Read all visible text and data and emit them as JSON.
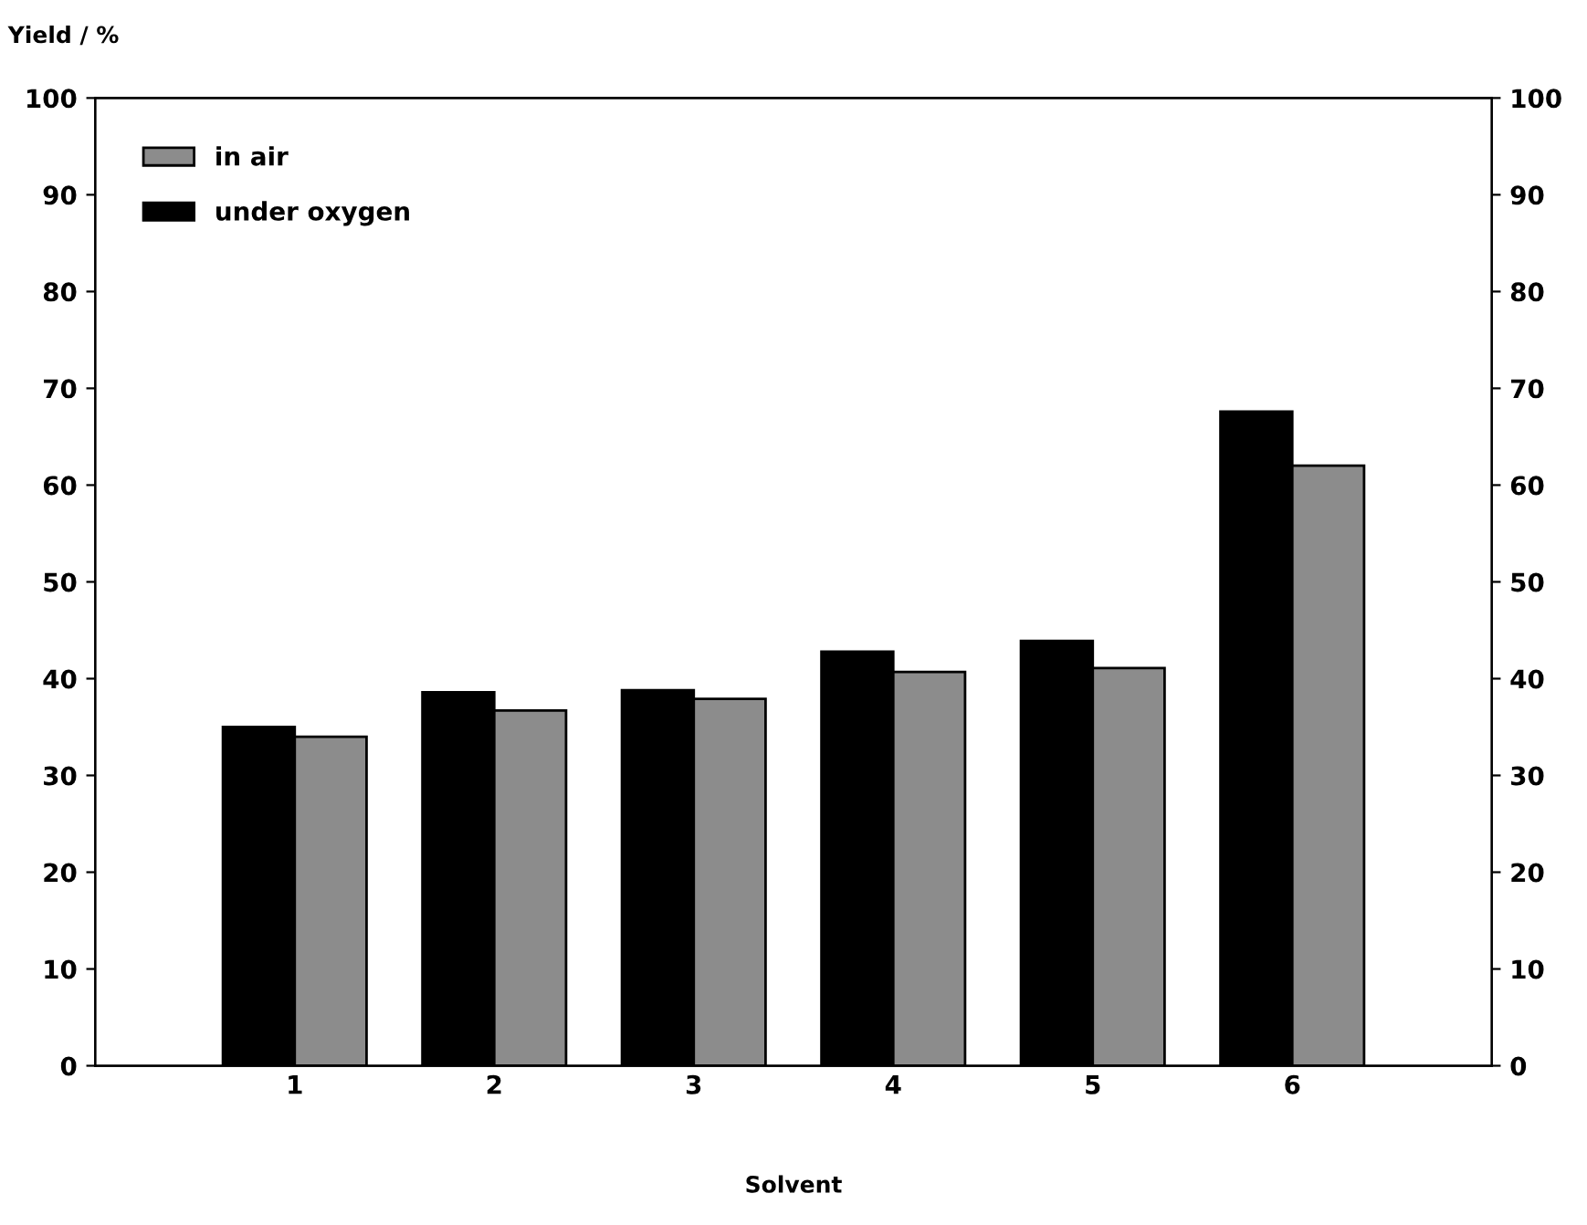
{
  "chart_data": {
    "type": "bar",
    "ylabel": "Yield / %",
    "xlabel": "Solvent",
    "categories": [
      "1",
      "2",
      "3",
      "4",
      "5",
      "6"
    ],
    "series": [
      {
        "name": "under oxygen",
        "color": "#000000",
        "values": [
          35,
          38.6,
          38.8,
          42.8,
          43.9,
          67.6
        ]
      },
      {
        "name": "in air",
        "color": "#8c8c8c",
        "values": [
          34,
          36.7,
          37.9,
          40.7,
          41.1,
          62
        ]
      }
    ],
    "ylim": [
      0,
      100
    ],
    "yticks": [
      0,
      10,
      20,
      30,
      40,
      50,
      60,
      70,
      80,
      90,
      100
    ],
    "y2lim": [
      0,
      100
    ],
    "y2ticks": [
      0,
      10,
      20,
      30,
      40,
      50,
      60,
      70,
      80,
      90,
      100
    ],
    "legend": "top left",
    "grid": false
  }
}
